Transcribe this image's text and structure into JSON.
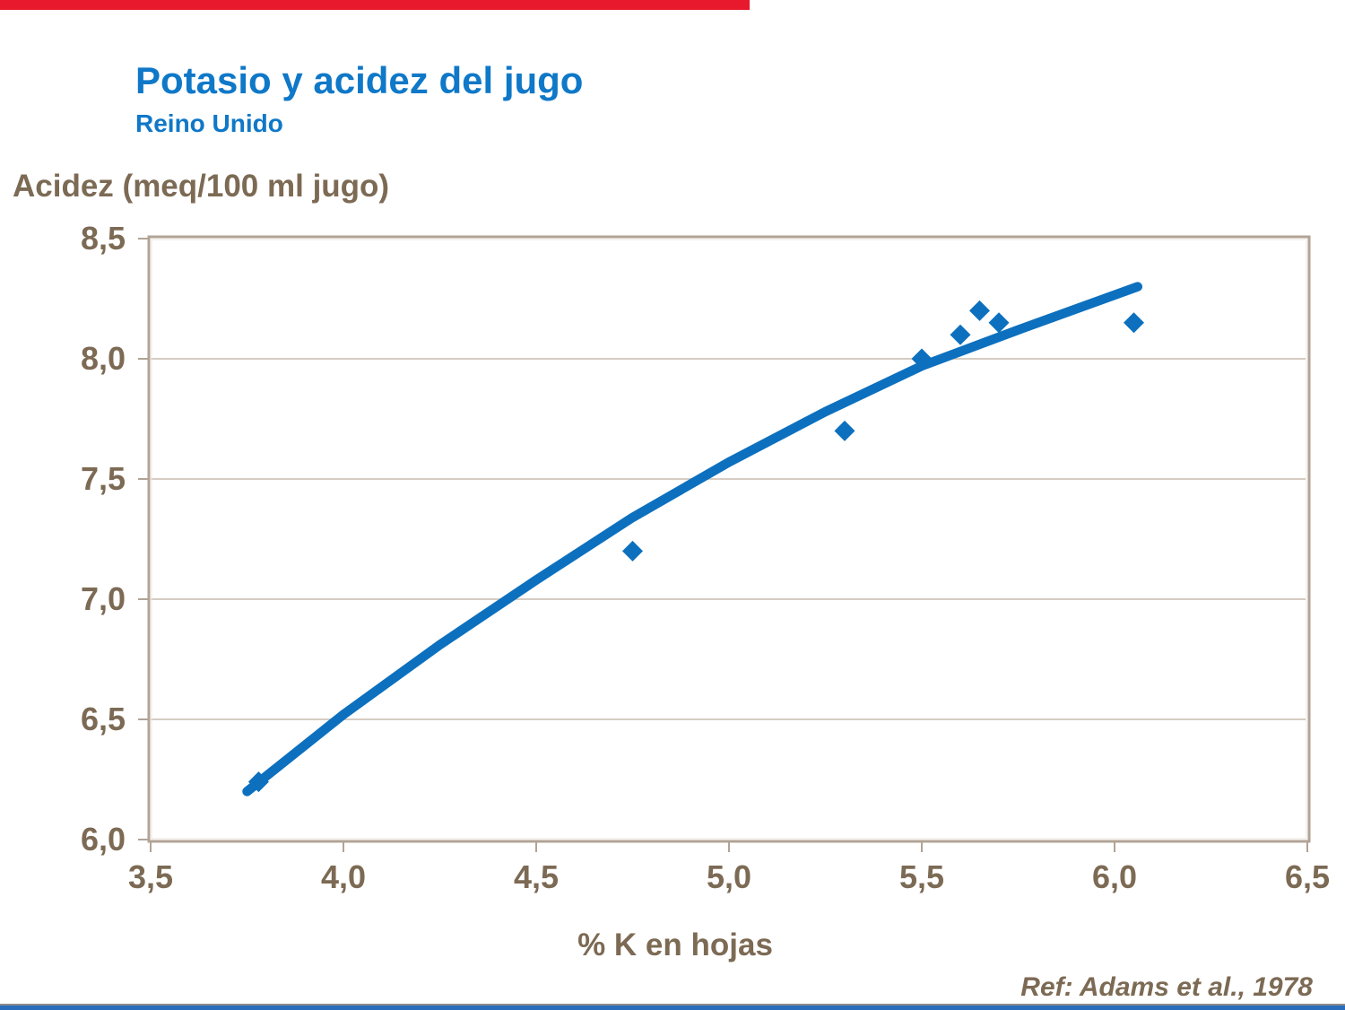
{
  "page": {
    "title": "Potasio y acidez del jugo",
    "subtitle": "Reino Unido",
    "reference": "Ref: Adams et al., 1978"
  },
  "colors": {
    "title_blue": "#0f78c8",
    "plot_blue": "#0c70be",
    "text_brown": "#7c6a54",
    "axis_frame": "#b2a396",
    "axis_frame_inner": "#ece5dc",
    "gridline": "#c9bcad",
    "top_bar_red": "#e8192c",
    "bottom_bar_blue": "#2a6ebb",
    "bottom_rule_gray": "#8c8c8c"
  },
  "chart_data": {
    "type": "scatter",
    "title": "Potasio y acidez del jugo",
    "subtitle": "Reino Unido",
    "xlabel": "% K en hojas",
    "ylabel": "Acidez (meq/100 ml jugo)",
    "xlim": [
      3.5,
      6.5
    ],
    "ylim": [
      6.0,
      8.5
    ],
    "x_ticks": [
      "3,5",
      "4,0",
      "4,5",
      "5,0",
      "5,5",
      "6,0",
      "6,5"
    ],
    "x_tick_values": [
      3.5,
      4.0,
      4.5,
      5.0,
      5.5,
      6.0,
      6.5
    ],
    "y_ticks": [
      "8,5",
      "8,0",
      "7,5",
      "7,0",
      "6,5",
      "6,0"
    ],
    "y_tick_values": [
      8.5,
      8.0,
      7.5,
      7.0,
      6.5,
      6.0
    ],
    "grid": "horizontal gridlines only, no legend",
    "marker": "diamond",
    "points": [
      [
        3.78,
        6.24
      ],
      [
        4.75,
        7.2
      ],
      [
        5.3,
        7.7
      ],
      [
        5.5,
        8.0
      ],
      [
        5.6,
        8.1
      ],
      [
        5.65,
        8.2
      ],
      [
        5.7,
        8.15
      ],
      [
        6.05,
        8.15
      ]
    ],
    "trend_line": [
      [
        3.75,
        6.2
      ],
      [
        4.0,
        6.52
      ],
      [
        4.25,
        6.81
      ],
      [
        4.5,
        7.08
      ],
      [
        4.75,
        7.34
      ],
      [
        5.0,
        7.57
      ],
      [
        5.25,
        7.78
      ],
      [
        5.5,
        7.97
      ],
      [
        5.75,
        8.12
      ],
      [
        6.06,
        8.3
      ]
    ],
    "source": "Ref: Adams et al., 1978"
  }
}
